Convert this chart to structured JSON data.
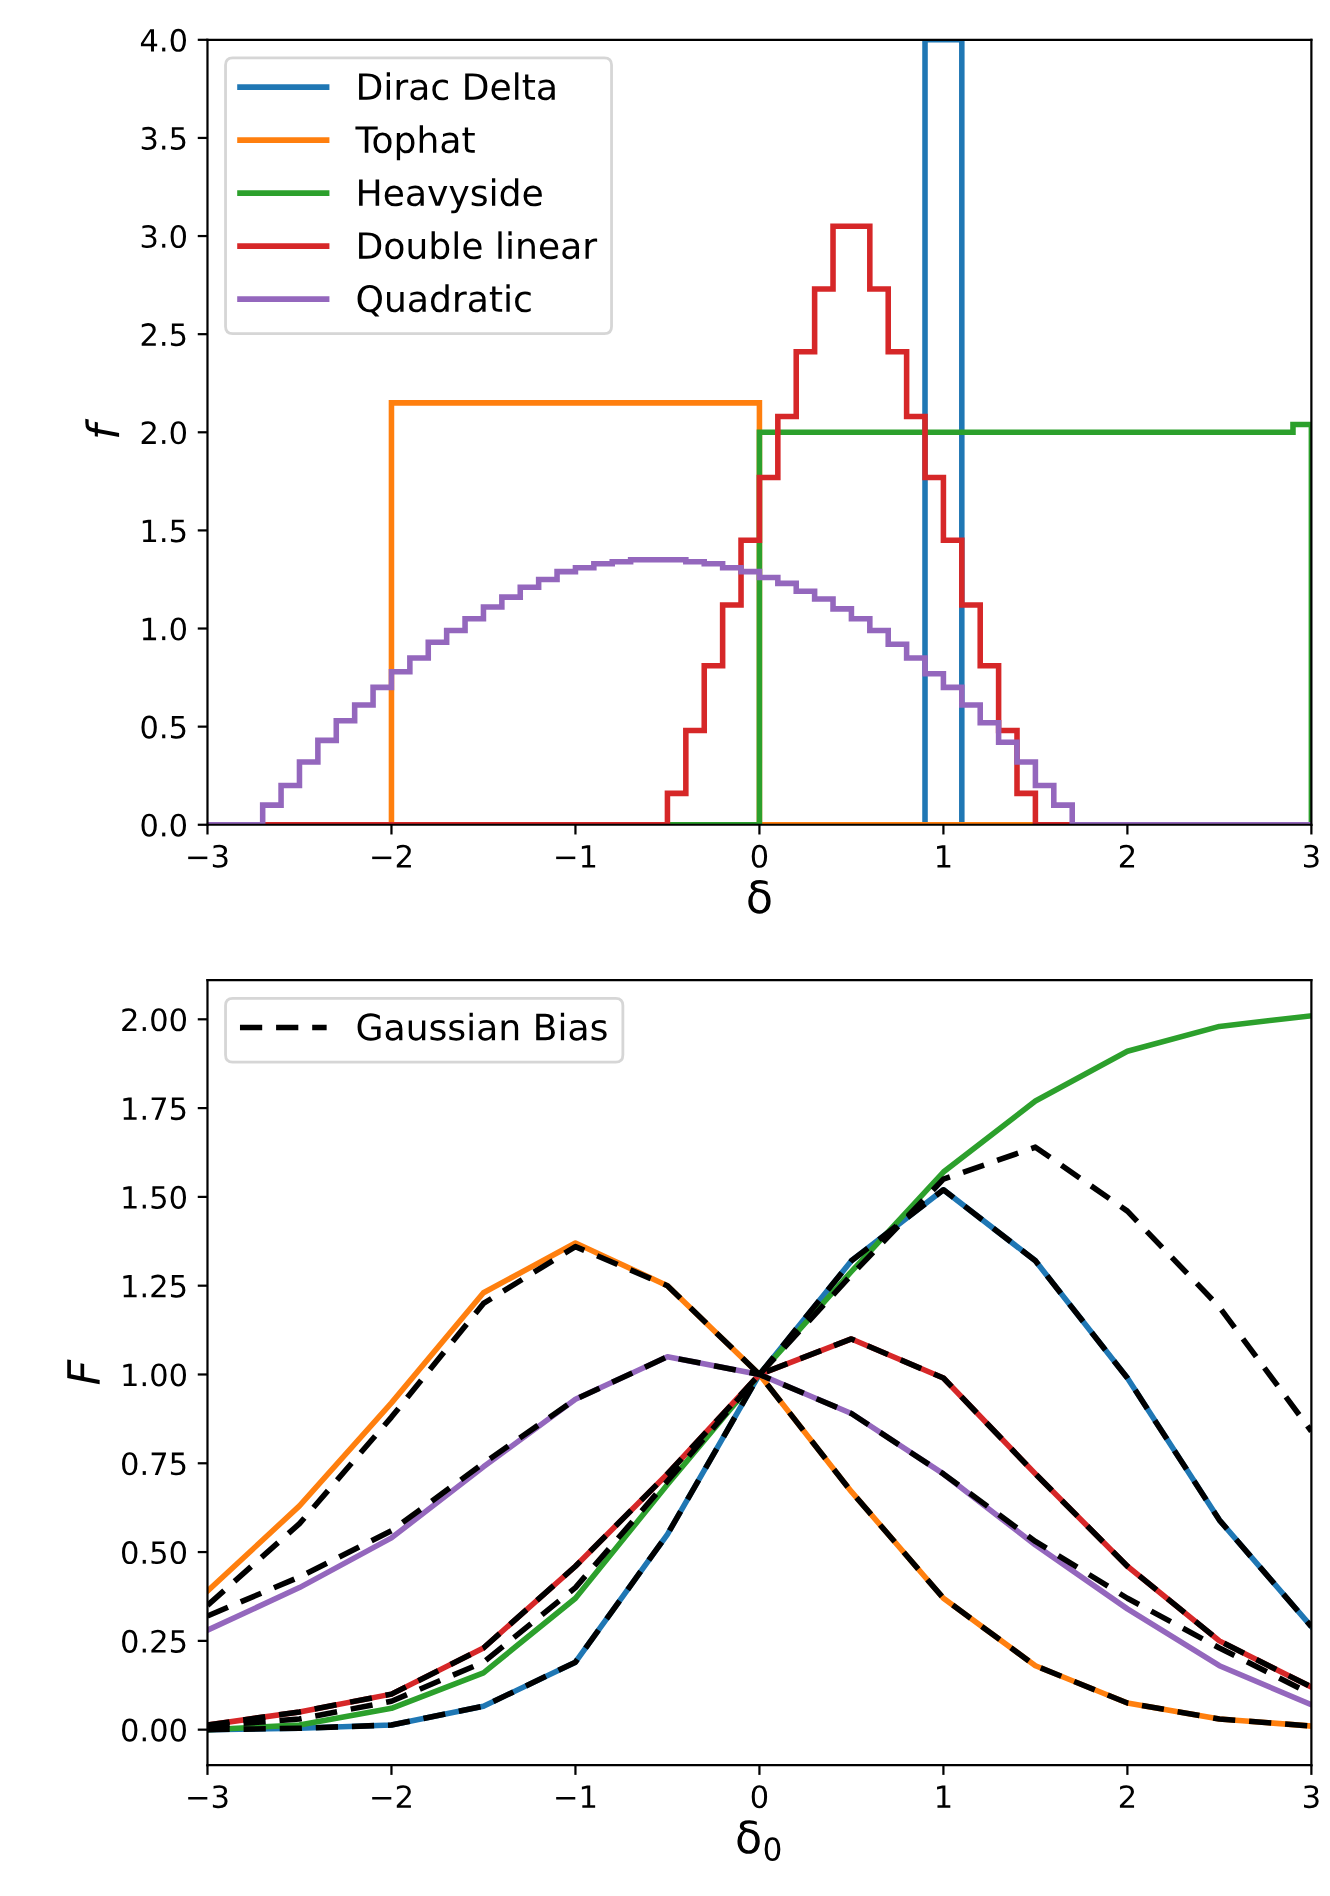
{
  "chart_data": [
    {
      "type": "histogram",
      "xlabel": "δ",
      "ylabel": "f",
      "xlim": [
        -3,
        3
      ],
      "ylim": [
        0,
        4
      ],
      "xticks": [
        {
          "value": -3,
          "label": "−3"
        },
        {
          "value": -2,
          "label": "−2"
        },
        {
          "value": -1,
          "label": "−1"
        },
        0,
        1,
        2,
        3
      ],
      "yticks": [
        {
          "value": 0,
          "label": "0.0"
        },
        {
          "value": 0.5,
          "label": "0.5"
        },
        {
          "value": 1,
          "label": "1.0"
        },
        {
          "value": 1.5,
          "label": "1.5"
        },
        {
          "value": 2,
          "label": "2.0"
        },
        {
          "value": 2.5,
          "label": "2.5"
        },
        {
          "value": 3,
          "label": "3.0"
        },
        {
          "value": 3.5,
          "label": "3.5"
        },
        {
          "value": 4,
          "label": "4.0"
        }
      ],
      "legend": "top left",
      "grid": false,
      "bins": [
        -3,
        -2.9,
        -2.8,
        -2.7,
        -2.6,
        -2.5,
        -2.4,
        -2.3,
        -2.2,
        -2.1,
        -2,
        -1.9,
        -1.8,
        -1.7,
        -1.6,
        -1.5,
        -1.4,
        -1.3,
        -1.2,
        -1.1,
        -1,
        -0.9,
        -0.8,
        -0.7,
        -0.6,
        -0.5,
        -0.4,
        -0.3,
        -0.2,
        -0.1,
        0,
        0.1,
        0.2,
        0.3,
        0.4,
        0.5,
        0.6,
        0.7,
        0.8,
        0.9,
        1,
        1.1,
        1.2,
        1.3,
        1.4,
        1.5,
        1.6,
        1.7,
        1.8,
        1.9,
        2,
        2.1,
        2.2,
        2.3,
        2.4,
        2.5,
        2.6,
        2.7,
        2.8,
        2.9,
        3
      ],
      "series": [
        {
          "name": "Dirac Delta",
          "color": "#1f77b4",
          "values": [
            0,
            0,
            0,
            0,
            0,
            0,
            0,
            0,
            0,
            0,
            0,
            0,
            0,
            0,
            0,
            0,
            0,
            0,
            0,
            0,
            0,
            0,
            0,
            0,
            0,
            0,
            0,
            0,
            0,
            0,
            0,
            0,
            0,
            0,
            0,
            0,
            0,
            0,
            0,
            4,
            4,
            0,
            0,
            0,
            0,
            0,
            0,
            0,
            0,
            0,
            0,
            0,
            0,
            0,
            0,
            0,
            0,
            0,
            0,
            0
          ]
        },
        {
          "name": "Tophat",
          "color": "#ff7f0e",
          "values": [
            0,
            0,
            0,
            0,
            0,
            0,
            0,
            0,
            0,
            0,
            2.15,
            2.15,
            2.15,
            2.15,
            2.15,
            2.15,
            2.15,
            2.15,
            2.15,
            2.15,
            2.15,
            2.15,
            2.15,
            2.15,
            2.15,
            2.15,
            2.15,
            2.15,
            2.15,
            2.15,
            0,
            0,
            0,
            0,
            0,
            0,
            0,
            0,
            0,
            0,
            0,
            0,
            0,
            0,
            0,
            0,
            0,
            0,
            0,
            0,
            0,
            0,
            0,
            0,
            0,
            0,
            0,
            0,
            0,
            0
          ]
        },
        {
          "name": "Heavyside",
          "color": "#2ca02c",
          "values": [
            0,
            0,
            0,
            0,
            0,
            0,
            0,
            0,
            0,
            0,
            0,
            0,
            0,
            0,
            0,
            0,
            0,
            0,
            0,
            0,
            0,
            0,
            0,
            0,
            0,
            0,
            0,
            0,
            0,
            0,
            2.0,
            2.0,
            2.0,
            2.0,
            2.0,
            2.0,
            2.0,
            2.0,
            2.0,
            2.0,
            2.0,
            2.0,
            2.0,
            2.0,
            2.0,
            2.0,
            2.0,
            2.0,
            2.0,
            2.0,
            2.0,
            2.0,
            2.0,
            2.0,
            2.0,
            2.0,
            2.0,
            2.0,
            2.0,
            2.04
          ]
        },
        {
          "name": "Double linear",
          "color": "#d62728",
          "values": [
            0,
            0,
            0,
            0,
            0,
            0,
            0,
            0,
            0,
            0,
            0,
            0,
            0,
            0,
            0,
            0,
            0,
            0,
            0,
            0,
            0,
            0,
            0,
            0,
            0,
            0.16,
            0.48,
            0.81,
            1.12,
            1.45,
            1.77,
            2.08,
            2.41,
            2.73,
            3.05,
            3.05,
            2.73,
            2.41,
            2.08,
            1.77,
            1.45,
            1.12,
            0.81,
            0.48,
            0.16,
            0,
            0,
            0,
            0,
            0,
            0,
            0,
            0,
            0,
            0,
            0,
            0,
            0,
            0,
            0
          ]
        },
        {
          "name": "Quadratic",
          "color": "#9467bd",
          "values": [
            0,
            0,
            0,
            0.1,
            0.2,
            0.32,
            0.43,
            0.53,
            0.61,
            0.7,
            0.78,
            0.85,
            0.93,
            0.99,
            1.05,
            1.11,
            1.16,
            1.21,
            1.25,
            1.29,
            1.31,
            1.33,
            1.34,
            1.35,
            1.35,
            1.35,
            1.34,
            1.33,
            1.31,
            1.29,
            1.26,
            1.23,
            1.19,
            1.15,
            1.1,
            1.05,
            0.99,
            0.92,
            0.85,
            0.77,
            0.7,
            0.61,
            0.52,
            0.42,
            0.32,
            0.2,
            0.1,
            0,
            0,
            0,
            0,
            0,
            0,
            0,
            0,
            0,
            0,
            0,
            0,
            0
          ]
        }
      ]
    },
    {
      "type": "line",
      "xlabel": "δ$_{0}$",
      "ylabel": "F",
      "xlim": [
        -3,
        3
      ],
      "ylim": [
        -0.1,
        2.11
      ],
      "xticks": [
        {
          "value": -3,
          "label": "−3"
        },
        {
          "value": -2,
          "label": "−2"
        },
        {
          "value": -1,
          "label": "−1"
        },
        0,
        1,
        2,
        3
      ],
      "yticks": [
        {
          "value": 0,
          "label": "0.00"
        },
        {
          "value": 0.25,
          "label": "0.25"
        },
        {
          "value": 0.5,
          "label": "0.50"
        },
        {
          "value": 0.75,
          "label": "0.75"
        },
        {
          "value": 1,
          "label": "1.00"
        },
        {
          "value": 1.25,
          "label": "1.25"
        },
        {
          "value": 1.5,
          "label": "1.50"
        },
        {
          "value": 1.75,
          "label": "1.75"
        },
        {
          "value": 2,
          "label": "2.00"
        }
      ],
      "legend": "top left",
      "grid": false,
      "x": [
        -3,
        -2.5,
        -2,
        -1.5,
        -1,
        -0.5,
        0,
        0.5,
        1,
        1.5,
        2,
        2.5,
        3
      ],
      "series": [
        {
          "color": "#1f77b4",
          "line_style": "solid",
          "values": [
            0.0,
            0.004,
            0.013,
            0.066,
            0.19,
            0.55,
            1.0,
            1.32,
            1.52,
            1.32,
            0.99,
            0.59,
            0.29
          ]
        },
        {
          "color": "#ff7f0e",
          "line_style": "solid",
          "values": [
            0.39,
            0.63,
            0.92,
            1.23,
            1.37,
            1.25,
            1.0,
            0.67,
            0.37,
            0.18,
            0.075,
            0.03,
            0.01
          ]
        },
        {
          "color": "#2ca02c",
          "line_style": "solid",
          "values": [
            0.0,
            0.013,
            0.06,
            0.16,
            0.37,
            0.69,
            1.0,
            1.29,
            1.57,
            1.77,
            1.91,
            1.98,
            2.01
          ]
        },
        {
          "color": "#d62728",
          "line_style": "solid",
          "values": [
            0.013,
            0.05,
            0.1,
            0.23,
            0.46,
            0.72,
            1.0,
            1.1,
            0.99,
            0.72,
            0.46,
            0.25,
            0.12
          ]
        },
        {
          "color": "#9467bd",
          "line_style": "solid",
          "values": [
            0.28,
            0.4,
            0.54,
            0.74,
            0.93,
            1.05,
            1.0,
            0.89,
            0.72,
            0.52,
            0.34,
            0.18,
            0.07
          ]
        },
        {
          "name": "Gaussian Bias",
          "color": "#000000",
          "line_style": "dashed",
          "values": [
            0.0,
            0.004,
            0.013,
            0.066,
            0.19,
            0.55,
            1.0,
            1.32,
            1.52,
            1.32,
            0.99,
            0.59,
            0.29
          ]
        },
        {
          "color": "#000000",
          "line_style": "dashed",
          "values": [
            0.35,
            0.58,
            0.88,
            1.2,
            1.36,
            1.25,
            1.0,
            0.67,
            0.37,
            0.18,
            0.075,
            0.03,
            0.01
          ]
        },
        {
          "color": "#000000",
          "line_style": "dashed",
          "values": [
            0.01,
            0.03,
            0.08,
            0.19,
            0.4,
            0.7,
            1.0,
            1.28,
            1.55,
            1.64,
            1.46,
            1.19,
            0.84
          ]
        },
        {
          "color": "#000000",
          "line_style": "dashed",
          "values": [
            0.013,
            0.05,
            0.1,
            0.23,
            0.46,
            0.72,
            1.0,
            1.1,
            0.99,
            0.72,
            0.46,
            0.25,
            0.12
          ]
        },
        {
          "color": "#000000",
          "line_style": "dashed",
          "values": [
            0.32,
            0.43,
            0.56,
            0.75,
            0.93,
            1.05,
            1.0,
            0.89,
            0.72,
            0.53,
            0.37,
            0.23,
            0.1
          ]
        }
      ]
    }
  ]
}
